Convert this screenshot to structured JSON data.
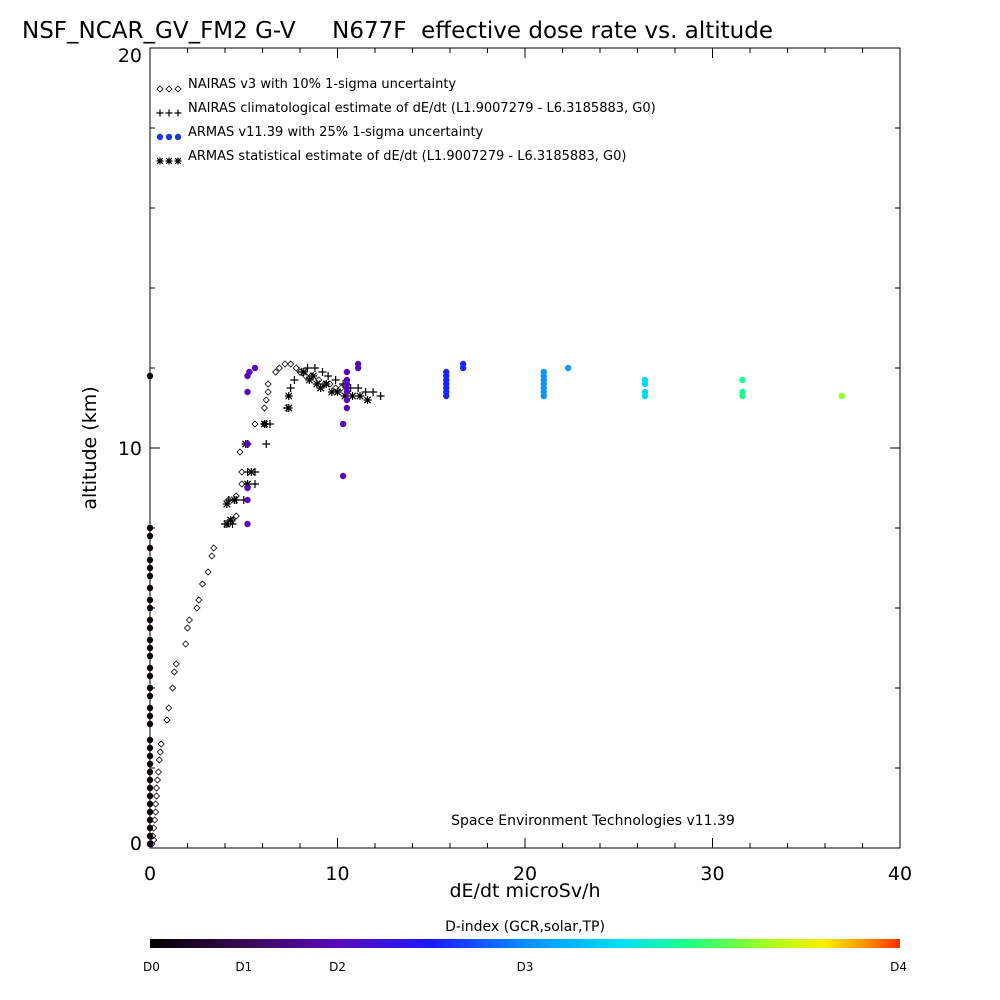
{
  "chart_data": {
    "type": "scatter",
    "title": "NSF_NCAR_GV_FM2 G-V     N677F  effective dose rate vs. altitude",
    "xlabel": "dE/dt microSv/h",
    "ylabel": "altitude (km)",
    "xlim": [
      0,
      40
    ],
    "ylim": [
      0,
      20
    ],
    "x_ticks": [
      0,
      10,
      20,
      30,
      40
    ],
    "y_ticks": [
      0,
      10,
      20
    ],
    "x_tick_labels": [
      "0",
      "10",
      "20",
      "30",
      "40"
    ],
    "y_tick_labels": [
      "0",
      "10",
      "20"
    ],
    "grid": false,
    "legend_position": "top-left",
    "legend": [
      {
        "symbol": "◇◇◇",
        "label": "NAIRAS v3 with 10% 1-sigma uncertainty"
      },
      {
        "symbol": "+++",
        "label": "NAIRAS climatological estimate of dE/dt (L1.9007279 - L6.3185883, G0)"
      },
      {
        "symbol": "●●●",
        "label": "ARMAS v11.39 with 25% 1-sigma uncertainty"
      },
      {
        "symbol": "***",
        "label": "ARMAS statistical estimate of dE/dt (L1.9007279 - L6.3185883, G0)"
      }
    ],
    "annotation": "Space Environment Technologies v11.39",
    "colorbar": {
      "title": "D-index (GCR,solar,TP)",
      "labels": [
        "D0",
        "D1",
        "D2",
        "D3",
        "D4"
      ]
    },
    "series": [
      {
        "name": "NAIRAS v3 with 10% 1-sigma uncertainty",
        "marker": "diamond",
        "points": [
          [
            0.1,
            0.1
          ],
          [
            0.2,
            0.2
          ],
          [
            0.15,
            0.3
          ],
          [
            0.2,
            0.5
          ],
          [
            0.25,
            0.7
          ],
          [
            0.3,
            0.9
          ],
          [
            0.3,
            1.1
          ],
          [
            0.35,
            1.3
          ],
          [
            0.35,
            1.5
          ],
          [
            0.4,
            1.7
          ],
          [
            0.45,
            1.9
          ],
          [
            0.5,
            2.2
          ],
          [
            0.55,
            2.4
          ],
          [
            0.6,
            2.6
          ],
          [
            0.9,
            3.2
          ],
          [
            1.0,
            3.5
          ],
          [
            1.2,
            4.0
          ],
          [
            1.3,
            4.4
          ],
          [
            1.4,
            4.6
          ],
          [
            1.9,
            5.1
          ],
          [
            2.0,
            5.5
          ],
          [
            2.1,
            5.7
          ],
          [
            2.5,
            6.0
          ],
          [
            2.6,
            6.2
          ],
          [
            2.8,
            6.6
          ],
          [
            3.1,
            6.9
          ],
          [
            3.3,
            7.3
          ],
          [
            3.4,
            7.5
          ],
          [
            4.2,
            8.1
          ],
          [
            4.4,
            8.2
          ],
          [
            4.6,
            8.3
          ],
          [
            4.2,
            8.7
          ],
          [
            4.6,
            8.8
          ],
          [
            4.9,
            9.1
          ],
          [
            4.9,
            9.4
          ],
          [
            4.8,
            9.9
          ],
          [
            5.2,
            10.1
          ],
          [
            5.6,
            10.6
          ],
          [
            6.1,
            10.6
          ],
          [
            6.1,
            11.0
          ],
          [
            6.2,
            11.2
          ],
          [
            6.3,
            11.4
          ],
          [
            6.3,
            11.6
          ],
          [
            6.7,
            11.9
          ],
          [
            6.9,
            12.0
          ],
          [
            7.2,
            12.1
          ],
          [
            7.5,
            12.1
          ],
          [
            7.8,
            12.0
          ],
          [
            8.0,
            11.9
          ],
          [
            8.3,
            11.8
          ],
          [
            8.6,
            11.8
          ],
          [
            9.0,
            11.7
          ],
          [
            9.3,
            11.6
          ],
          [
            9.6,
            11.6
          ],
          [
            9.9,
            11.5
          ],
          [
            10.2,
            11.5
          ],
          [
            10.5,
            11.5
          ]
        ]
      },
      {
        "name": "NAIRAS climatological estimate of dE/dt (L1.9007279 - L6.3185883, G0)",
        "marker": "plus",
        "points": [
          [
            4.0,
            8.1
          ],
          [
            4.4,
            8.1
          ],
          [
            4.2,
            8.7
          ],
          [
            4.6,
            8.7
          ],
          [
            5.0,
            8.7
          ],
          [
            5.2,
            9.1
          ],
          [
            5.6,
            9.1
          ],
          [
            5.2,
            9.4
          ],
          [
            5.6,
            9.4
          ],
          [
            5.2,
            10.1
          ],
          [
            6.2,
            10.1
          ],
          [
            6.2,
            10.6
          ],
          [
            6.4,
            10.6
          ],
          [
            7.3,
            11.0
          ],
          [
            7.5,
            11.5
          ],
          [
            7.7,
            11.7
          ],
          [
            8.1,
            11.9
          ],
          [
            8.4,
            12.0
          ],
          [
            8.8,
            12.0
          ],
          [
            9.2,
            11.9
          ],
          [
            9.5,
            11.8
          ],
          [
            9.9,
            11.7
          ],
          [
            10.3,
            11.6
          ],
          [
            10.7,
            11.5
          ],
          [
            11.1,
            11.5
          ],
          [
            11.5,
            11.4
          ],
          [
            11.9,
            11.4
          ],
          [
            12.3,
            11.3
          ]
        ]
      },
      {
        "name": "ARMAS statistical estimate of dE/dt (L1.9007279 - L6.3185883, G0)",
        "marker": "asterisk",
        "points": [
          [
            4.1,
            8.1
          ],
          [
            4.3,
            8.2
          ],
          [
            4.1,
            8.6
          ],
          [
            4.5,
            8.7
          ],
          [
            5.2,
            9.1
          ],
          [
            5.4,
            9.4
          ],
          [
            5.1,
            10.1
          ],
          [
            6.1,
            10.6
          ],
          [
            7.4,
            11.0
          ],
          [
            7.4,
            11.3
          ],
          [
            8.2,
            11.9
          ],
          [
            8.5,
            11.7
          ],
          [
            8.7,
            11.8
          ],
          [
            8.9,
            11.6
          ],
          [
            9.1,
            11.5
          ],
          [
            9.4,
            11.6
          ],
          [
            9.7,
            11.4
          ],
          [
            10.0,
            11.4
          ],
          [
            10.4,
            11.3
          ],
          [
            10.8,
            11.3
          ],
          [
            11.2,
            11.3
          ],
          [
            11.6,
            11.2
          ]
        ]
      },
      {
        "name": "ARMAS v11.39 with 25% 1-sigma uncertainty",
        "marker": "dot",
        "points": [
          {
            "x": 0,
            "y": 0.1,
            "d": 0.1
          },
          {
            "x": 0,
            "y": 0.3,
            "d": 0.1
          },
          {
            "x": 0,
            "y": 0.5,
            "d": 0.1
          },
          {
            "x": 0,
            "y": 0.7,
            "d": 0.1
          },
          {
            "x": 0,
            "y": 0.9,
            "d": 0.1
          },
          {
            "x": 0,
            "y": 1.1,
            "d": 0.1
          },
          {
            "x": 0,
            "y": 1.3,
            "d": 0.1
          },
          {
            "x": 0,
            "y": 1.5,
            "d": 0.1
          },
          {
            "x": 0,
            "y": 1.7,
            "d": 0.1
          },
          {
            "x": 0,
            "y": 1.9,
            "d": 0.1
          },
          {
            "x": 0,
            "y": 2.1,
            "d": 0.1
          },
          {
            "x": 0,
            "y": 2.3,
            "d": 0.1
          },
          {
            "x": 0,
            "y": 2.5,
            "d": 0.1
          },
          {
            "x": 0,
            "y": 2.7,
            "d": 0.1
          },
          {
            "x": 0,
            "y": 3.1,
            "d": 0.1
          },
          {
            "x": 0,
            "y": 3.3,
            "d": 0.1
          },
          {
            "x": 0,
            "y": 3.5,
            "d": 0.1
          },
          {
            "x": 0,
            "y": 3.8,
            "d": 0.1
          },
          {
            "x": 0,
            "y": 4.0,
            "d": 0.1
          },
          {
            "x": 0,
            "y": 4.3,
            "d": 0.1
          },
          {
            "x": 0,
            "y": 4.5,
            "d": 0.1
          },
          {
            "x": 0,
            "y": 4.8,
            "d": 0.1
          },
          {
            "x": 0,
            "y": 5.0,
            "d": 0.1
          },
          {
            "x": 0,
            "y": 5.2,
            "d": 0.1
          },
          {
            "x": 0,
            "y": 5.5,
            "d": 0.1
          },
          {
            "x": 0,
            "y": 5.7,
            "d": 0.1
          },
          {
            "x": 0,
            "y": 6.0,
            "d": 0.1
          },
          {
            "x": 0,
            "y": 6.2,
            "d": 0.1
          },
          {
            "x": 0,
            "y": 6.5,
            "d": 0.1
          },
          {
            "x": 0,
            "y": 6.8,
            "d": 0.1
          },
          {
            "x": 0,
            "y": 7.0,
            "d": 0.1
          },
          {
            "x": 0,
            "y": 7.2,
            "d": 0.1
          },
          {
            "x": 0,
            "y": 7.5,
            "d": 0.1
          },
          {
            "x": 0,
            "y": 7.8,
            "d": 0.1
          },
          {
            "x": 0,
            "y": 8.0,
            "d": 0.1
          },
          {
            "x": 0,
            "y": 11.8,
            "d": 0.1
          },
          {
            "x": 5.2,
            "y": 8.1,
            "d": 1.0
          },
          {
            "x": 5.2,
            "y": 8.7,
            "d": 1.0
          },
          {
            "x": 5.2,
            "y": 9.0,
            "d": 1.0
          },
          {
            "x": 5.2,
            "y": 10.1,
            "d": 1.0
          },
          {
            "x": 5.2,
            "y": 11.4,
            "d": 1.0
          },
          {
            "x": 5.2,
            "y": 11.8,
            "d": 1.0
          },
          {
            "x": 5.3,
            "y": 11.9,
            "d": 1.0
          },
          {
            "x": 5.6,
            "y": 12.0,
            "d": 1.0
          },
          {
            "x": 10.3,
            "y": 9.3,
            "d": 1.0
          },
          {
            "x": 10.3,
            "y": 10.6,
            "d": 1.0
          },
          {
            "x": 10.5,
            "y": 11.0,
            "d": 1.0
          },
          {
            "x": 10.5,
            "y": 11.2,
            "d": 1.0
          },
          {
            "x": 10.5,
            "y": 11.4,
            "d": 1.0
          },
          {
            "x": 10.5,
            "y": 11.5,
            "d": 1.0
          },
          {
            "x": 10.5,
            "y": 11.6,
            "d": 1.0
          },
          {
            "x": 10.5,
            "y": 11.7,
            "d": 1.0
          },
          {
            "x": 10.5,
            "y": 11.9,
            "d": 1.0
          },
          {
            "x": 11.1,
            "y": 12.0,
            "d": 1.0
          },
          {
            "x": 11.1,
            "y": 12.1,
            "d": 1.0
          },
          {
            "x": 15.8,
            "y": 11.3,
            "d": 1.55
          },
          {
            "x": 15.8,
            "y": 11.4,
            "d": 1.55
          },
          {
            "x": 15.8,
            "y": 11.5,
            "d": 1.55
          },
          {
            "x": 15.8,
            "y": 11.6,
            "d": 1.55
          },
          {
            "x": 15.8,
            "y": 11.7,
            "d": 1.55
          },
          {
            "x": 15.8,
            "y": 11.8,
            "d": 1.55
          },
          {
            "x": 15.8,
            "y": 11.9,
            "d": 1.55
          },
          {
            "x": 16.7,
            "y": 12.0,
            "d": 1.55
          },
          {
            "x": 16.7,
            "y": 12.1,
            "d": 1.55
          },
          {
            "x": 21.0,
            "y": 11.3,
            "d": 2.05
          },
          {
            "x": 21.0,
            "y": 11.4,
            "d": 2.05
          },
          {
            "x": 21.0,
            "y": 11.5,
            "d": 2.05
          },
          {
            "x": 21.0,
            "y": 11.6,
            "d": 2.05
          },
          {
            "x": 21.0,
            "y": 11.7,
            "d": 2.05
          },
          {
            "x": 21.0,
            "y": 11.8,
            "d": 2.05
          },
          {
            "x": 21.0,
            "y": 11.9,
            "d": 2.05
          },
          {
            "x": 22.3,
            "y": 12.0,
            "d": 2.1
          },
          {
            "x": 26.4,
            "y": 11.3,
            "d": 2.45
          },
          {
            "x": 26.4,
            "y": 11.4,
            "d": 2.45
          },
          {
            "x": 26.4,
            "y": 11.6,
            "d": 2.45
          },
          {
            "x": 26.4,
            "y": 11.7,
            "d": 2.45
          },
          {
            "x": 31.6,
            "y": 11.3,
            "d": 2.85
          },
          {
            "x": 31.6,
            "y": 11.4,
            "d": 2.85
          },
          {
            "x": 31.6,
            "y": 11.7,
            "d": 2.85
          },
          {
            "x": 36.9,
            "y": 11.3,
            "d": 3.25
          }
        ]
      }
    ]
  }
}
